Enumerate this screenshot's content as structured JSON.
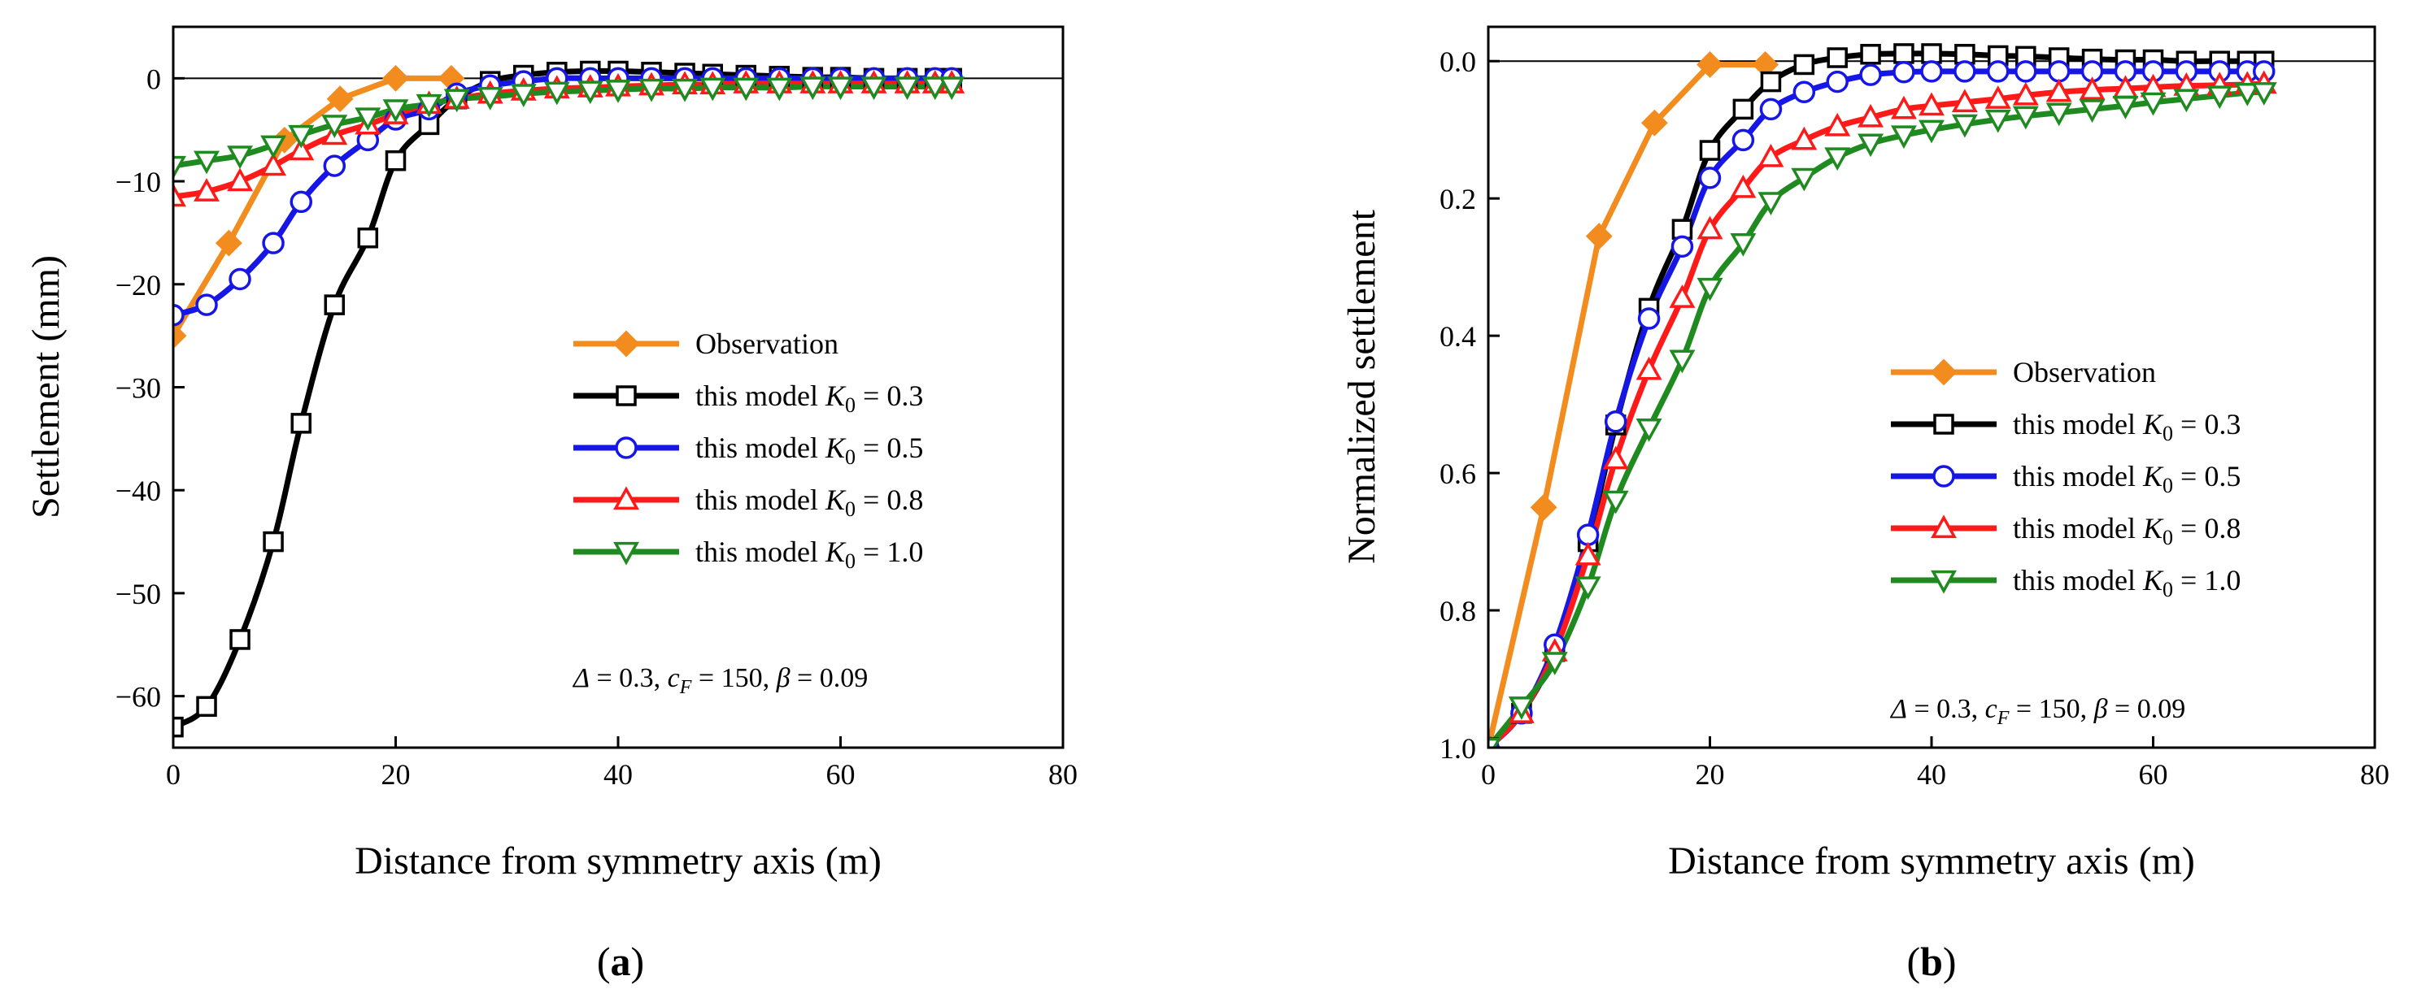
{
  "chart_data": [
    {
      "panel": "a",
      "type": "line",
      "xlabel": "Distance from symmetry axis (m)",
      "ylabel": "Settlement (mm)",
      "xlim": [
        0,
        80
      ],
      "ylim": [
        -65,
        5
      ],
      "xticks": [
        0,
        20,
        40,
        60,
        80
      ],
      "yticks": [
        0,
        -10,
        -20,
        -30,
        -40,
        -50,
        -60
      ],
      "reference_line_y": 0,
      "legend_position": "lower-right",
      "annotation": "Δ = 0.3, cF = 150, β = 0.09",
      "series": [
        {
          "name": "Observation",
          "color": "#F28C1E",
          "marker": "filled-diamond",
          "x": [
            0,
            5,
            10,
            15,
            20,
            25
          ],
          "y": [
            -25,
            -16,
            -6,
            -2,
            0,
            0
          ]
        },
        {
          "name": "this model K0 = 0.3",
          "color": "#000000",
          "marker": "open-square",
          "x": [
            0,
            3,
            6,
            9,
            11.5,
            14.5,
            17.5,
            20,
            23,
            25.5,
            28.5,
            31.5,
            34.5,
            37.5,
            40,
            43,
            46,
            48.5,
            51.5,
            54.5,
            57.5,
            60,
            63,
            66,
            68.5,
            70
          ],
          "y": [
            -63,
            -61,
            -54.5,
            -45,
            -33.5,
            -22,
            -15.5,
            -8,
            -4.5,
            -2,
            -0.3,
            0.3,
            0.6,
            0.7,
            0.7,
            0.6,
            0.5,
            0.4,
            0.3,
            0.2,
            0.1,
            0.1,
            0,
            0,
            0,
            0
          ]
        },
        {
          "name": "this model K0 = 0.5",
          "color": "#1616E6",
          "marker": "open-circle",
          "x": [
            0,
            3,
            6,
            9,
            11.5,
            14.5,
            17.5,
            20,
            23,
            25.5,
            28.5,
            31.5,
            34.5,
            37.5,
            40,
            43,
            46,
            48.5,
            51.5,
            54.5,
            57.5,
            60,
            63,
            66,
            68.5,
            70
          ],
          "y": [
            -23,
            -22,
            -19.5,
            -16,
            -12,
            -8.5,
            -6,
            -4,
            -3,
            -1.5,
            -0.7,
            -0.3,
            0,
            0,
            0,
            0,
            0,
            0,
            0,
            0,
            0,
            0,
            0,
            0,
            0,
            0
          ]
        },
        {
          "name": "this model K0 = 0.8",
          "color": "#FF1A1A",
          "marker": "open-triangle-up",
          "x": [
            0,
            3,
            6,
            9,
            11.5,
            14.5,
            17.5,
            20,
            23,
            25.5,
            28.5,
            31.5,
            34.5,
            37.5,
            40,
            43,
            46,
            48.5,
            51.5,
            54.5,
            57.5,
            60,
            63,
            66,
            68.5,
            70
          ],
          "y": [
            -11.5,
            -11,
            -10,
            -8.5,
            -7,
            -5.5,
            -4.5,
            -3.5,
            -2.5,
            -2,
            -1.5,
            -1.2,
            -1,
            -0.9,
            -0.8,
            -0.7,
            -0.6,
            -0.6,
            -0.5,
            -0.5,
            -0.5,
            -0.5,
            -0.5,
            -0.5,
            -0.5,
            -0.5
          ]
        },
        {
          "name": "this model K0 = 1.0",
          "color": "#1F8A1F",
          "marker": "open-triangle-down",
          "x": [
            0,
            3,
            6,
            9,
            11.5,
            14.5,
            17.5,
            20,
            23,
            25.5,
            28.5,
            31.5,
            34.5,
            37.5,
            40,
            43,
            46,
            48.5,
            51.5,
            54.5,
            57.5,
            60,
            63,
            66,
            68.5,
            70
          ],
          "y": [
            -8.5,
            -8,
            -7.5,
            -6.5,
            -5.5,
            -4.5,
            -3.8,
            -3,
            -2.5,
            -2,
            -1.8,
            -1.5,
            -1.3,
            -1.2,
            -1.1,
            -1,
            -1,
            -0.9,
            -0.9,
            -0.9,
            -0.8,
            -0.8,
            -0.8,
            -0.8,
            -0.8,
            -0.8
          ]
        }
      ]
    },
    {
      "panel": "b",
      "type": "line",
      "xlabel": "Distance from symmetry axis (m)",
      "ylabel": "Normalized settlement",
      "xlim": [
        0,
        80
      ],
      "ylim": [
        1.0,
        -0.05
      ],
      "y_inverted": true,
      "xticks": [
        0,
        20,
        40,
        60,
        80
      ],
      "yticks": [
        0.0,
        0.2,
        0.4,
        0.6,
        0.8,
        1.0
      ],
      "reference_line_y": 0,
      "legend_position": "lower-right",
      "annotation": "Δ = 0.3, cF = 150, β = 0.09",
      "series": [
        {
          "name": "Observation",
          "color": "#F28C1E",
          "marker": "filled-diamond",
          "x": [
            0,
            5,
            10,
            15,
            20,
            25
          ],
          "y": [
            1.0,
            0.65,
            0.255,
            0.09,
            0.005,
            0.005
          ]
        },
        {
          "name": "this model K0 = 0.3",
          "color": "#000000",
          "marker": "open-square",
          "x": [
            0,
            3,
            6,
            9,
            11.5,
            14.5,
            17.5,
            20,
            23,
            25.5,
            28.5,
            31.5,
            34.5,
            37.5,
            40,
            43,
            46,
            48.5,
            51.5,
            54.5,
            57.5,
            60,
            63,
            66,
            68.5,
            70
          ],
          "y": [
            1.0,
            0.95,
            0.86,
            0.7,
            0.53,
            0.36,
            0.245,
            0.13,
            0.07,
            0.03,
            0.005,
            -0.005,
            -0.01,
            -0.011,
            -0.011,
            -0.01,
            -0.008,
            -0.007,
            -0.005,
            -0.003,
            -0.002,
            -0.002,
            0,
            0,
            0,
            0
          ]
        },
        {
          "name": "this model K0 = 0.5",
          "color": "#1616E6",
          "marker": "open-circle",
          "x": [
            0,
            3,
            6,
            9,
            11.5,
            14.5,
            17.5,
            20,
            23,
            25.5,
            28.5,
            31.5,
            34.5,
            37.5,
            40,
            43,
            46,
            48.5,
            51.5,
            54.5,
            57.5,
            60,
            63,
            66,
            68.5,
            70
          ],
          "y": [
            1.0,
            0.95,
            0.85,
            0.69,
            0.525,
            0.375,
            0.27,
            0.17,
            0.115,
            0.07,
            0.045,
            0.03,
            0.02,
            0.016,
            0.015,
            0.015,
            0.015,
            0.015,
            0.015,
            0.015,
            0.015,
            0.015,
            0.015,
            0.015,
            0.015,
            0.015
          ]
        },
        {
          "name": "this model K0 = 0.8",
          "color": "#FF1A1A",
          "marker": "open-triangle-up",
          "x": [
            0,
            3,
            6,
            9,
            11.5,
            14.5,
            17.5,
            20,
            23,
            25.5,
            28.5,
            31.5,
            34.5,
            37.5,
            40,
            43,
            46,
            48.5,
            51.5,
            54.5,
            57.5,
            60,
            63,
            66,
            68.5,
            70
          ],
          "y": [
            1.0,
            0.95,
            0.86,
            0.72,
            0.58,
            0.45,
            0.345,
            0.245,
            0.185,
            0.14,
            0.115,
            0.095,
            0.082,
            0.07,
            0.065,
            0.06,
            0.055,
            0.05,
            0.045,
            0.042,
            0.04,
            0.038,
            0.036,
            0.035,
            0.034,
            0.033
          ]
        },
        {
          "name": "this model K0 = 1.0",
          "color": "#1F8A1F",
          "marker": "open-triangle-down",
          "x": [
            0,
            3,
            6,
            9,
            11.5,
            14.5,
            17.5,
            20,
            23,
            25.5,
            28.5,
            31.5,
            34.5,
            37.5,
            40,
            43,
            46,
            48.5,
            51.5,
            54.5,
            57.5,
            60,
            63,
            66,
            68.5,
            70
          ],
          "y": [
            1.0,
            0.94,
            0.875,
            0.765,
            0.64,
            0.535,
            0.435,
            0.33,
            0.265,
            0.205,
            0.17,
            0.14,
            0.12,
            0.108,
            0.1,
            0.092,
            0.085,
            0.08,
            0.075,
            0.07,
            0.065,
            0.06,
            0.055,
            0.05,
            0.046,
            0.045
          ]
        }
      ]
    }
  ],
  "labels": {
    "panel_a": "a",
    "panel_b": "b",
    "legend": [
      "Observation",
      "this model K0 = 0.3",
      "this model K0 = 0.5",
      "this model K0 = 0.8",
      "this model K0 = 1.0"
    ],
    "legend_main": "this model ",
    "legend_k": "K",
    "legend_sub": "0",
    "legend_values": [
      "= 0.3",
      "= 0.5",
      "= 0.8",
      "= 1.0"
    ],
    "annotation_delta": "Δ",
    "annotation_delta_val": " = 0.3, ",
    "annotation_c": "c",
    "annotation_c_sub": "F",
    "annotation_c_val": " = 150, ",
    "annotation_beta": "β",
    "annotation_beta_val": " = 0.09"
  }
}
